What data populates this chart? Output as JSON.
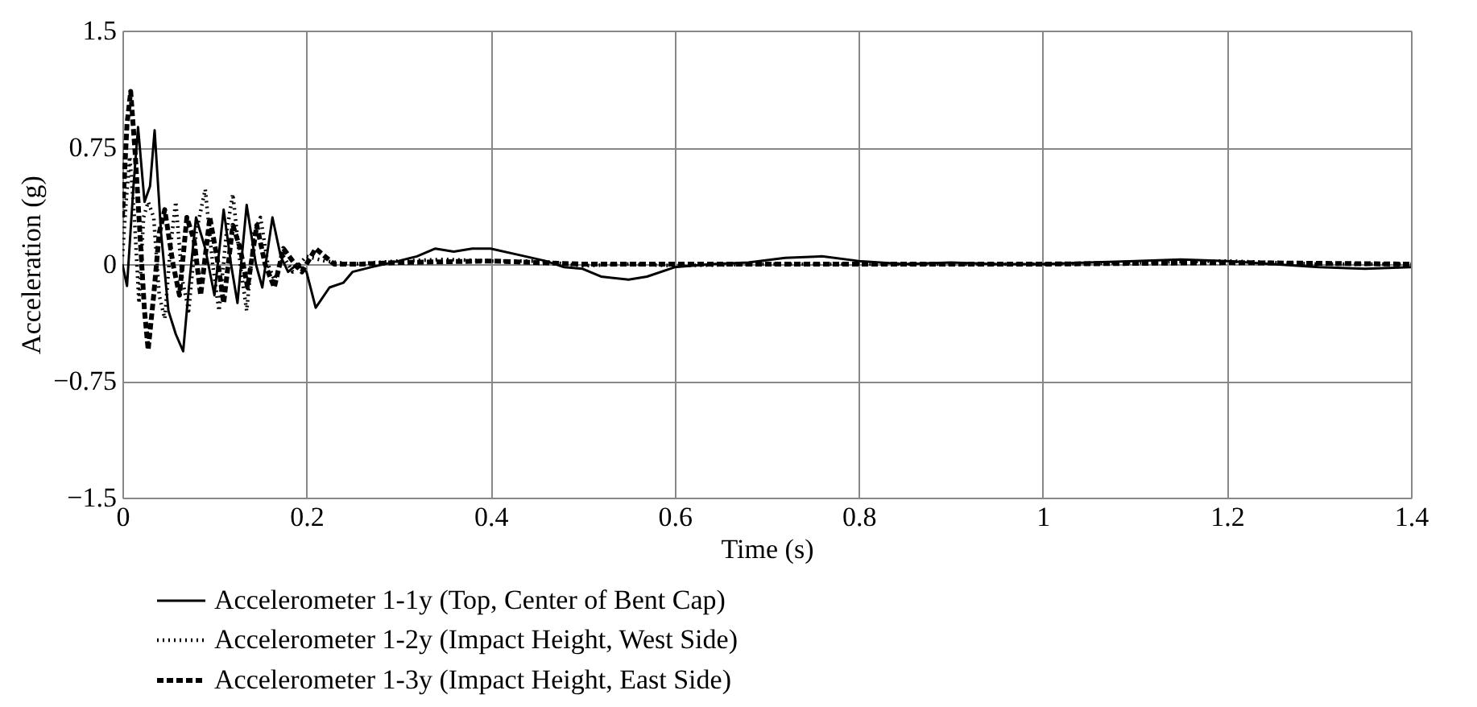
{
  "chart_data": {
    "type": "line",
    "xlabel": "Time (s)",
    "ylabel": "Acceleration (g)",
    "xlim": [
      0,
      1.4
    ],
    "xticks": [
      0,
      0.2,
      0.4,
      0.6,
      0.8,
      1,
      1.2,
      1.4
    ],
    "ylim": [
      -1.5,
      1.5
    ],
    "yticks": [
      -1.5,
      -0.75,
      0,
      0.75,
      1.5
    ],
    "grid": true,
    "legend": "bottom",
    "marker": "none",
    "series": [
      {
        "name": "Accelerometer 1-1y (Top, Center of Bent Cap)",
        "color": "#000000",
        "line_style": "solid",
        "x": [
          0,
          0.005,
          0.012,
          0.017,
          0.024,
          0.03,
          0.035,
          0.042,
          0.05,
          0.058,
          0.066,
          0.073,
          0.08,
          0.09,
          0.1,
          0.11,
          0.118,
          0.125,
          0.135,
          0.145,
          0.152,
          0.163,
          0.172,
          0.18,
          0.19,
          0.2,
          0.21,
          0.225,
          0.24,
          0.25,
          0.27,
          0.3,
          0.32,
          0.34,
          0.36,
          0.38,
          0.4,
          0.43,
          0.46,
          0.48,
          0.5,
          0.52,
          0.55,
          0.57,
          0.6,
          0.64,
          0.68,
          0.72,
          0.76,
          0.8,
          0.85,
          0.9,
          0.95,
          1.0,
          1.05,
          1.1,
          1.15,
          1.2,
          1.25,
          1.3,
          1.35,
          1.4
        ],
        "values": [
          0,
          -0.14,
          0.5,
          0.88,
          0.4,
          0.5,
          0.86,
          0.2,
          -0.3,
          -0.45,
          -0.56,
          -0.1,
          0.3,
          0.1,
          -0.2,
          0.35,
          0,
          -0.25,
          0.38,
          0,
          -0.15,
          0.3,
          0.05,
          -0.05,
          0,
          -0.05,
          -0.28,
          -0.15,
          -0.12,
          -0.05,
          -0.02,
          0.02,
          0.05,
          0.1,
          0.08,
          0.1,
          0.1,
          0.06,
          0.02,
          -0.02,
          -0.03,
          -0.08,
          -0.1,
          -0.08,
          -0.02,
          0,
          0.01,
          0.04,
          0.05,
          0.02,
          0,
          0.01,
          0,
          0,
          0.01,
          0.02,
          0.03,
          0.02,
          0,
          -0.02,
          -0.03,
          -0.02
        ]
      },
      {
        "name": "Accelerometer 1-2y (Impact Height, West Side)",
        "color": "#000000",
        "line_style": "dotted",
        "x": [
          0,
          0.004,
          0.008,
          0.013,
          0.018,
          0.023,
          0.028,
          0.034,
          0.04,
          0.046,
          0.052,
          0.058,
          0.065,
          0.072,
          0.08,
          0.09,
          0.098,
          0.105,
          0.113,
          0.12,
          0.128,
          0.135,
          0.143,
          0.15,
          0.158,
          0.165,
          0.175,
          0.185,
          0.2,
          0.22,
          0.25,
          0.3,
          0.35,
          0.4,
          0.45,
          0.5,
          0.55,
          0.6,
          0.7,
          0.8,
          0.9,
          1.0,
          1.1,
          1.2,
          1.3,
          1.4
        ],
        "values": [
          0.05,
          0.4,
          0.69,
          0.3,
          -0.25,
          0.3,
          0.4,
          0.3,
          -0.2,
          -0.35,
          0.1,
          0.4,
          -0.1,
          -0.3,
          0.2,
          0.48,
          0,
          -0.3,
          0.2,
          0.45,
          0,
          -0.3,
          0.2,
          0.3,
          0,
          -0.1,
          0.05,
          -0.05,
          0.05,
          0.02,
          0,
          0.02,
          0.03,
          0.02,
          0.02,
          -0.01,
          0,
          -0.01,
          0,
          0,
          0,
          0,
          0.01,
          0.02,
          0,
          0
        ]
      },
      {
        "name": "Accelerometer 1-3y (Impact Height, East Side)",
        "color": "#000000",
        "line_style": "dashed",
        "x": [
          0,
          0.005,
          0.009,
          0.014,
          0.019,
          0.024,
          0.028,
          0.034,
          0.04,
          0.046,
          0.055,
          0.062,
          0.07,
          0.078,
          0.085,
          0.095,
          0.104,
          0.11,
          0.12,
          0.128,
          0.136,
          0.146,
          0.155,
          0.165,
          0.175,
          0.185,
          0.195,
          0.21,
          0.23,
          0.26,
          0.3,
          0.4,
          0.5,
          0.6,
          0.8,
          1.0,
          1.2,
          1.4
        ],
        "values": [
          0.3,
          0.9,
          1.11,
          0.7,
          0.2,
          -0.3,
          -0.55,
          -0.2,
          0.2,
          0.35,
          0,
          -0.2,
          0.3,
          0.15,
          -0.2,
          0.3,
          0,
          -0.25,
          0.25,
          0.1,
          -0.15,
          0.25,
          0,
          -0.15,
          0.1,
          0.02,
          -0.05,
          0.1,
          0,
          0,
          0.01,
          0.02,
          0,
          0,
          0,
          0,
          0.01,
          0
        ]
      }
    ]
  }
}
